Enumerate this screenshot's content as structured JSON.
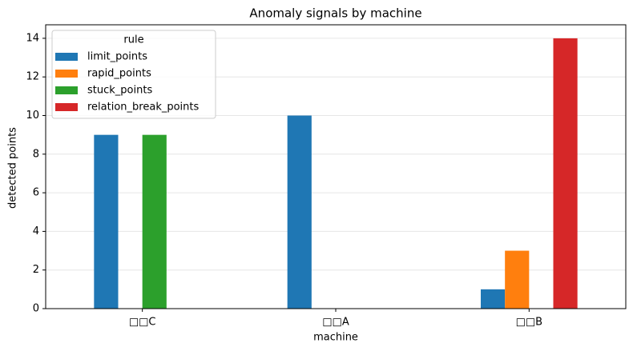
{
  "chart_data": {
    "type": "bar",
    "title": "Anomaly signals by machine",
    "x_label": "machine",
    "y_label": "detected points",
    "categories": [
      "□□C",
      "□□A",
      "□□B"
    ],
    "series": [
      {
        "name": "limit_points",
        "color": "#1f77b4",
        "values": [
          9,
          10,
          1
        ]
      },
      {
        "name": "rapid_points",
        "color": "#ff7f0e",
        "values": [
          0,
          0,
          3
        ]
      },
      {
        "name": "stuck_points",
        "color": "#2ca02c",
        "values": [
          9,
          0,
          0
        ]
      },
      {
        "name": "relation_break_points",
        "color": "#d62728",
        "values": [
          0,
          0,
          14
        ]
      }
    ],
    "legend_title": "rule",
    "legend_position": "upper-left",
    "ylim": [
      0,
      14.7
    ],
    "yticks": [
      0,
      2,
      4,
      6,
      8,
      10,
      12,
      14
    ],
    "grid": true
  }
}
